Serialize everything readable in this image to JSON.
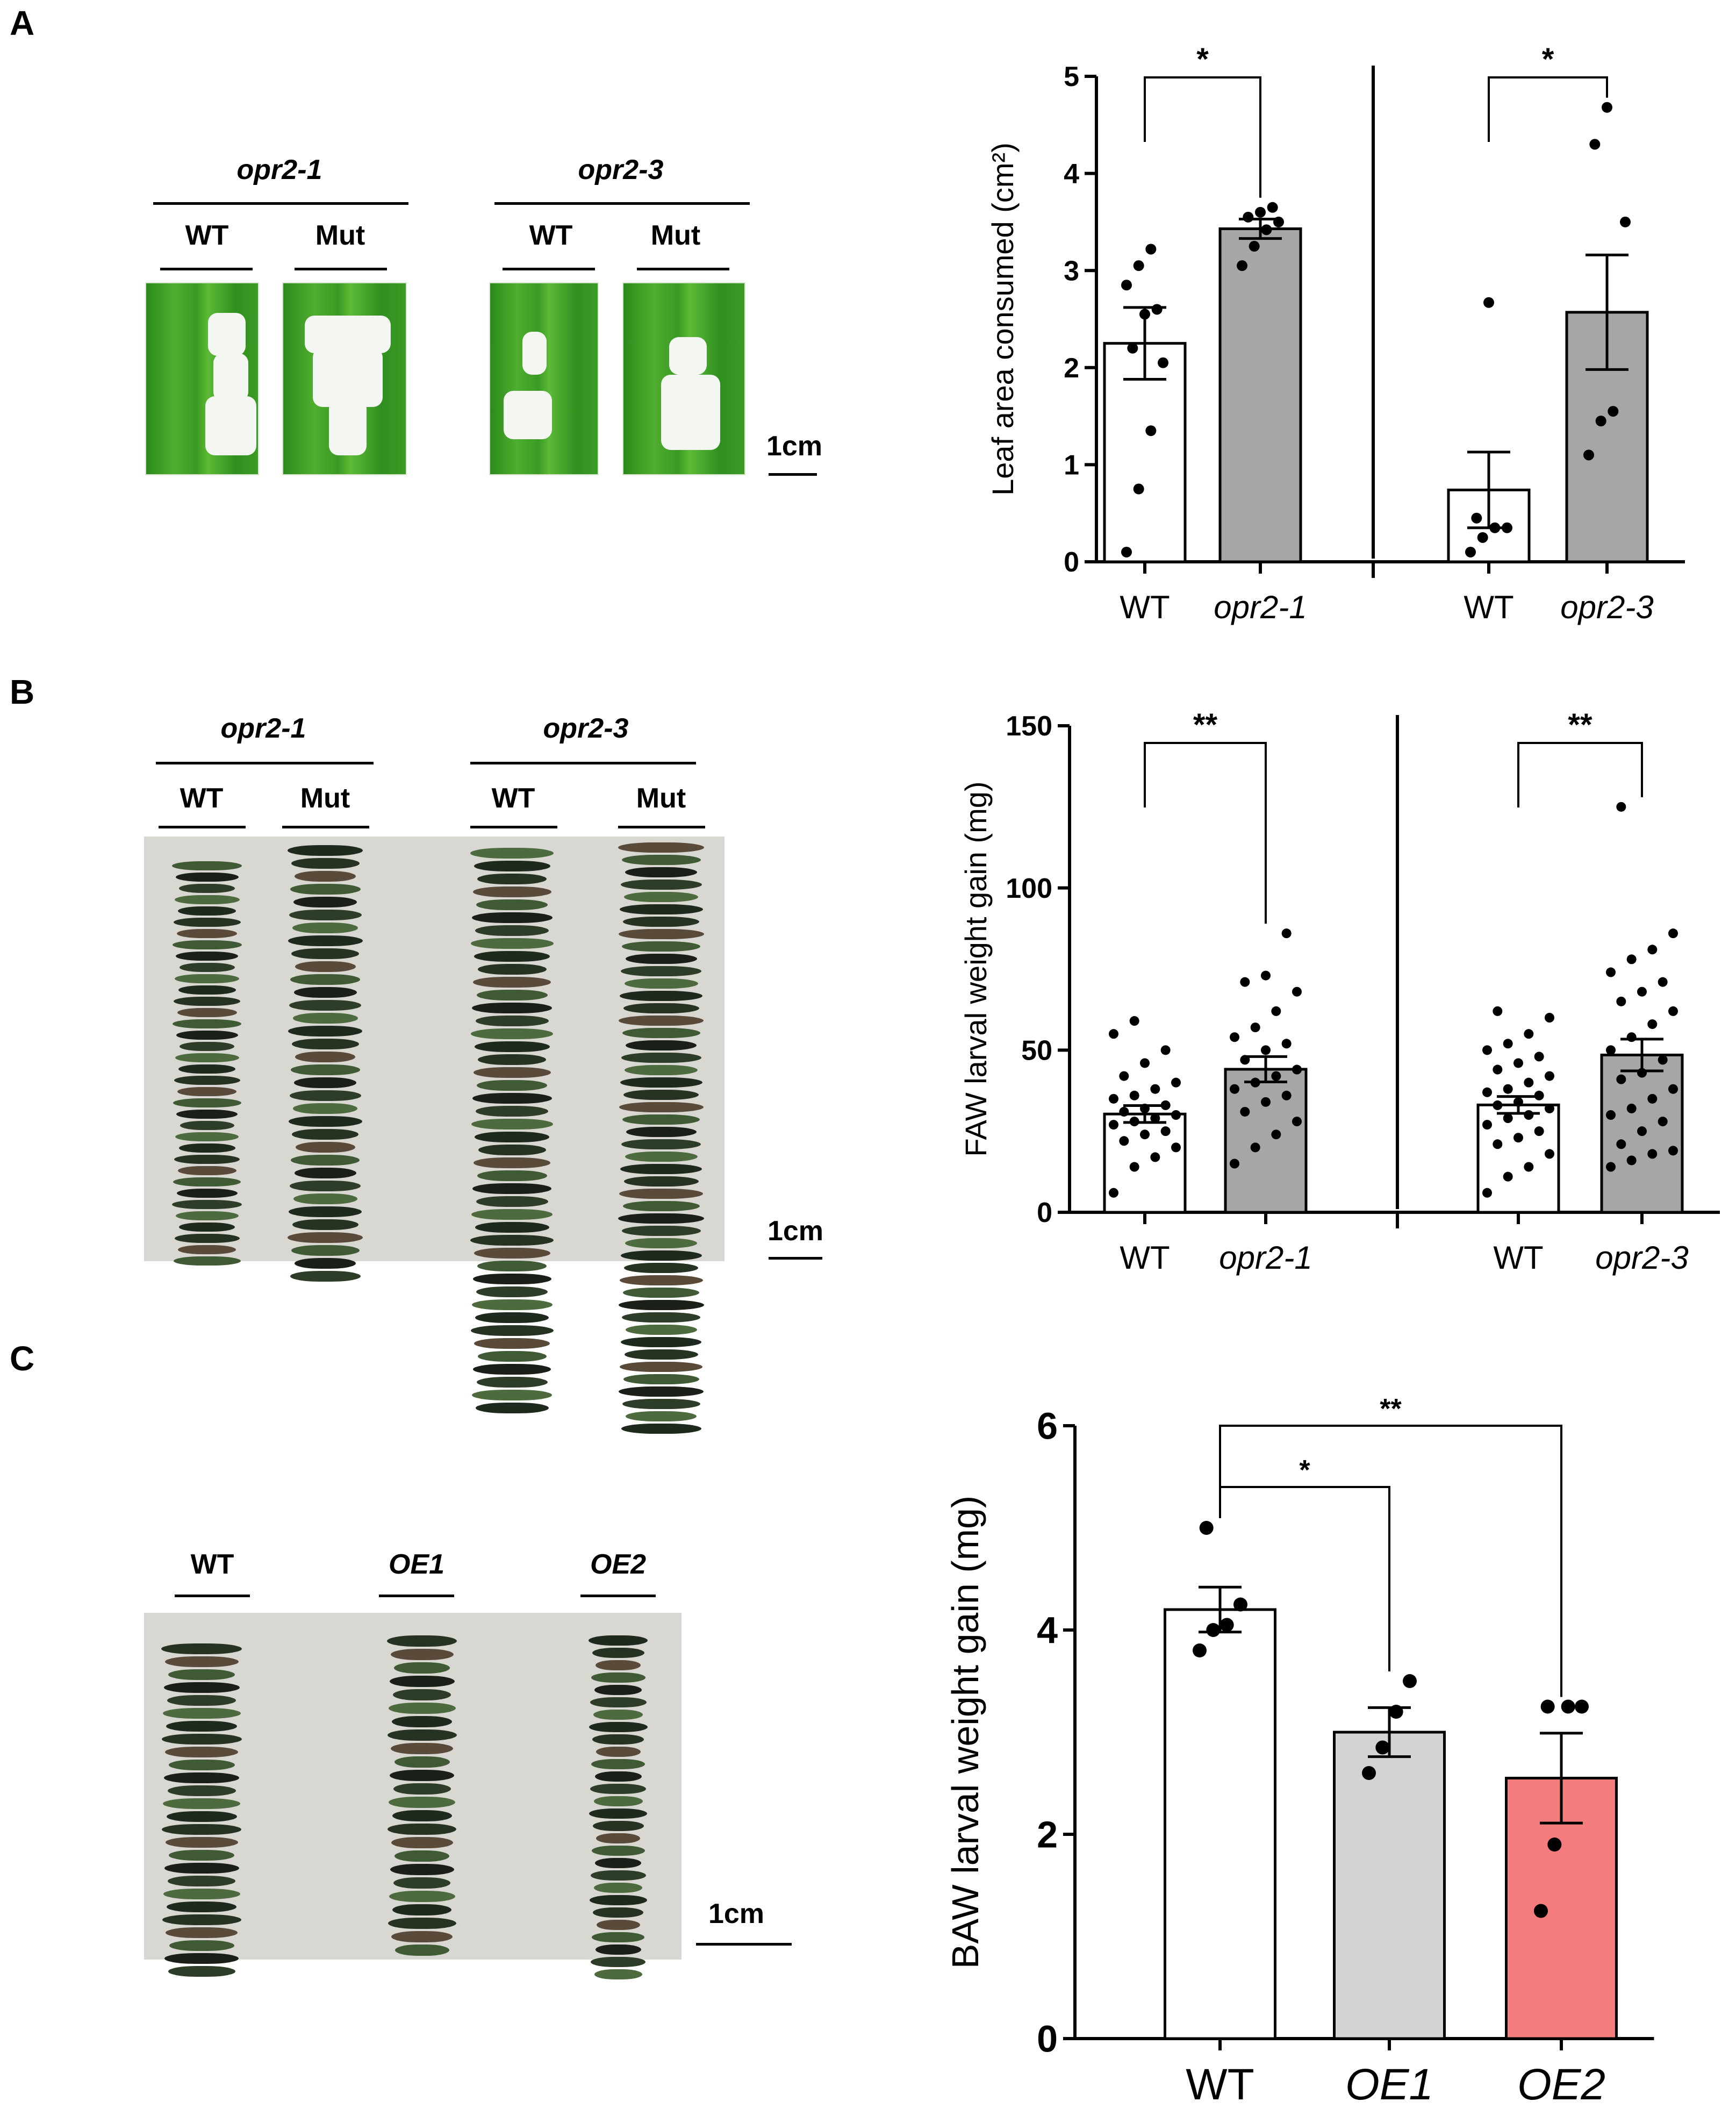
{
  "panels": {
    "A": {
      "letter": "A",
      "photo": {
        "groups": [
          {
            "name": "opr2-1",
            "sub": [
              "WT",
              "Mut"
            ]
          },
          {
            "name": "opr2-3",
            "sub": [
              "WT",
              "Mut"
            ]
          }
        ],
        "scale_label": "1cm"
      }
    },
    "B": {
      "letter": "B",
      "photo": {
        "groups": [
          {
            "name": "opr2-1",
            "sub": [
              "WT",
              "Mut"
            ]
          },
          {
            "name": "opr2-3",
            "sub": [
              "WT",
              "Mut"
            ]
          }
        ],
        "scale_label": "1cm"
      }
    },
    "C": {
      "letter": "C",
      "photo": {
        "labels": [
          "WT",
          "OE1",
          "OE2"
        ],
        "scale_label": "1cm"
      }
    }
  },
  "colors": {
    "white_bar": "#ffffff",
    "grey_bar": "#a6a6a8",
    "lightgrey_bar": "#d3d3d3",
    "pink_bar": "#f47c7c",
    "axis": "#000000"
  },
  "chart_data": [
    {
      "id": "A",
      "type": "bar",
      "ylabel": "Leaf area consumed  (cm²)",
      "ylim": [
        0,
        5
      ],
      "yticks": [
        0,
        1,
        2,
        3,
        4,
        5
      ],
      "categories": [
        "WT",
        "opr2-1",
        "WT",
        "opr2-3"
      ],
      "italic": [
        false,
        true,
        false,
        true
      ],
      "values": [
        2.25,
        3.43,
        0.74,
        2.57
      ],
      "errors": [
        0.37,
        0.1,
        0.39,
        0.59
      ],
      "bar_colors": [
        "#ffffff",
        "#a6a6a8",
        "#ffffff",
        "#a6a6a8"
      ],
      "points": [
        [
          0.1,
          0.75,
          1.35,
          2.05,
          2.2,
          2.55,
          2.6,
          2.85,
          3.05,
          3.22
        ],
        [
          3.05,
          3.25,
          3.42,
          3.5,
          3.55,
          3.6,
          3.65
        ],
        [
          0.1,
          0.25,
          0.35,
          0.35,
          0.45,
          2.67
        ],
        [
          1.1,
          1.45,
          1.55,
          3.5,
          4.3,
          4.68
        ]
      ],
      "significance": [
        {
          "from": 0,
          "to": 1,
          "label": "*"
        },
        {
          "from": 2,
          "to": 3,
          "label": "*"
        }
      ]
    },
    {
      "id": "B",
      "type": "bar",
      "ylabel": "FAW larval weight gain (mg)",
      "ylim": [
        0,
        150
      ],
      "yticks": [
        0,
        50,
        100,
        150
      ],
      "categories": [
        "WT",
        "opr2-1",
        "WT",
        "opr2-3"
      ],
      "italic": [
        false,
        true,
        false,
        true
      ],
      "values": [
        30.3,
        44.1,
        33.1,
        48.5
      ],
      "errors": [
        2.6,
        3.9,
        2.6,
        4.9
      ],
      "bar_colors": [
        "#ffffff",
        "#a6a6a8",
        "#ffffff",
        "#a6a6a8"
      ],
      "points": [
        [
          6,
          14,
          17,
          20,
          22,
          24,
          25,
          27,
          28,
          29,
          30,
          31,
          32,
          33,
          35,
          36,
          38,
          40,
          42,
          46,
          50,
          55,
          59
        ],
        [
          15,
          20,
          24,
          28,
          31,
          34,
          36,
          38,
          40,
          42,
          44,
          47,
          50,
          52,
          54,
          57,
          62,
          68,
          71,
          73,
          86
        ],
        [
          6,
          11,
          14,
          18,
          21,
          23,
          25,
          27,
          29,
          30,
          32,
          33,
          34,
          36,
          37,
          38,
          40,
          42,
          44,
          46,
          48,
          50,
          52,
          55,
          60,
          62
        ],
        [
          14,
          16,
          18,
          19,
          21,
          25,
          28,
          30,
          32,
          35,
          38,
          41,
          43,
          47,
          50,
          54,
          58,
          62,
          65,
          68,
          71,
          74,
          78,
          81,
          86,
          125
        ]
      ],
      "significance": [
        {
          "from": 0,
          "to": 1,
          "label": "**"
        },
        {
          "from": 2,
          "to": 3,
          "label": "**"
        }
      ]
    },
    {
      "id": "C",
      "type": "bar",
      "ylabel": "BAW larval weight gain (mg)",
      "ylim": [
        0,
        6
      ],
      "yticks": [
        0,
        2,
        4,
        6
      ],
      "categories": [
        "WT",
        "OE1",
        "OE2"
      ],
      "italic": [
        false,
        true,
        true
      ],
      "values": [
        4.2,
        3.0,
        2.55
      ],
      "errors": [
        0.22,
        0.24,
        0.44
      ],
      "bar_colors": [
        "#ffffff",
        "#d3d3d3",
        "#f47c7c"
      ],
      "points": [
        [
          3.8,
          4.0,
          4.05,
          4.25,
          5.0
        ],
        [
          2.6,
          2.85,
          3.2,
          3.5
        ],
        [
          1.25,
          1.9,
          3.25,
          3.25,
          3.25
        ]
      ],
      "significance": [
        {
          "from": 0,
          "to": 1,
          "label": "*"
        },
        {
          "from": 0,
          "to": 2,
          "label": "**"
        }
      ]
    }
  ]
}
